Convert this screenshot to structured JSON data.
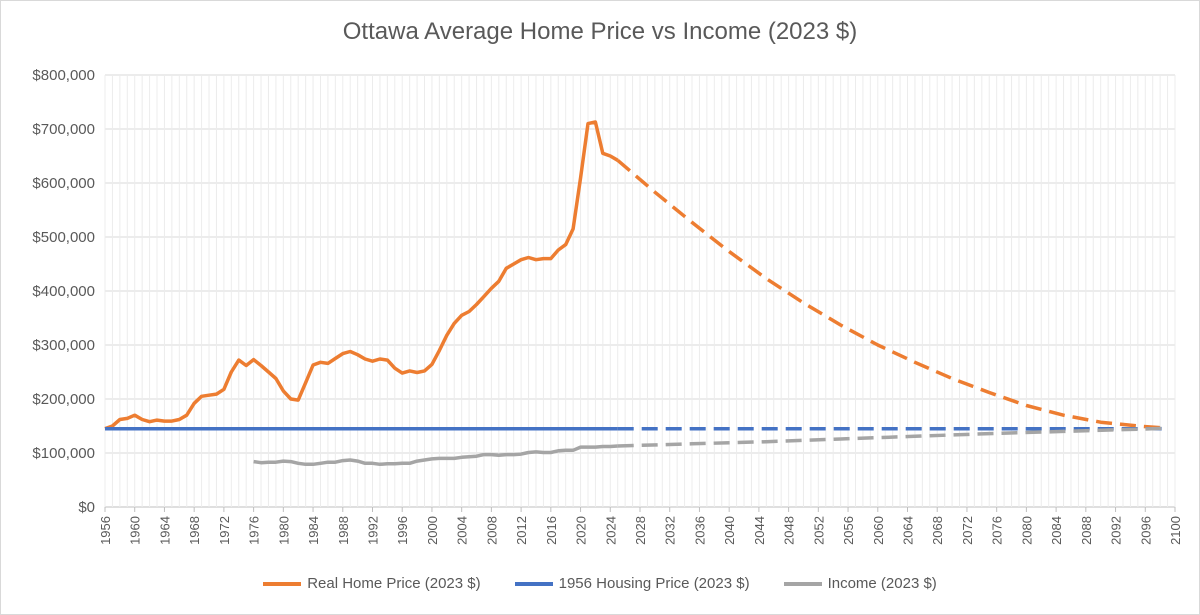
{
  "chart_data": {
    "type": "line",
    "title": "Ottawa Average Home Price vs Income (2023 $)",
    "xlabel": "",
    "ylabel": "",
    "xlim": [
      1956,
      2100
    ],
    "ylim": [
      0,
      800000
    ],
    "y_ticks": [
      0,
      100000,
      200000,
      300000,
      400000,
      500000,
      600000,
      700000,
      800000
    ],
    "y_tick_labels": [
      "$0",
      "$100,000",
      "$200,000",
      "$300,000",
      "$400,000",
      "$500,000",
      "$600,000",
      "$700,000",
      "$800,000"
    ],
    "x_tick_step": 4,
    "grid": true,
    "legend_position": "bottom",
    "colors": {
      "home": "#ed7d31",
      "housing1956": "#4472c4",
      "income": "#a5a5a5"
    },
    "series": [
      {
        "name": "Real Home Price (2023 $)",
        "style": "solid",
        "x": [
          1956,
          1957,
          1958,
          1959,
          1960,
          1961,
          1962,
          1963,
          1964,
          1965,
          1966,
          1967,
          1968,
          1969,
          1970,
          1971,
          1972,
          1973,
          1974,
          1975,
          1976,
          1977,
          1978,
          1979,
          1980,
          1981,
          1982,
          1983,
          1984,
          1985,
          1986,
          1987,
          1988,
          1989,
          1990,
          1991,
          1992,
          1993,
          1994,
          1995,
          1996,
          1997,
          1998,
          1999,
          2000,
          2001,
          2002,
          2003,
          2004,
          2005,
          2006,
          2007,
          2008,
          2009,
          2010,
          2011,
          2012,
          2013,
          2014,
          2015,
          2016,
          2017,
          2018,
          2019,
          2020,
          2021,
          2022,
          2023,
          2024,
          2025
        ],
        "y": [
          145000,
          150000,
          162000,
          164000,
          170000,
          162000,
          158000,
          161000,
          159000,
          159000,
          162000,
          170000,
          192000,
          205000,
          207000,
          209000,
          218000,
          250000,
          272000,
          262000,
          273000,
          262000,
          250000,
          238000,
          215000,
          200000,
          198000,
          230000,
          263000,
          268000,
          266000,
          275000,
          284000,
          288000,
          282000,
          274000,
          270000,
          274000,
          272000,
          257000,
          248000,
          252000,
          249000,
          252000,
          264000,
          290000,
          318000,
          340000,
          355000,
          362000,
          375000,
          390000,
          405000,
          418000,
          442000,
          450000,
          458000,
          462000,
          458000,
          460000,
          460000,
          476000,
          486000,
          515000,
          610000,
          710000,
          713000,
          655000,
          650000,
          642000
        ]
      },
      {
        "name": "Real Home Price (2023 $) projection",
        "style": "dashed",
        "x": [
          2025,
          2030,
          2035,
          2040,
          2045,
          2050,
          2055,
          2060,
          2065,
          2070,
          2075,
          2080,
          2085,
          2090,
          2095,
          2099
        ],
        "y": [
          642000,
          583000,
          527000,
          473000,
          423000,
          378000,
          337000,
          300000,
          268000,
          238000,
          212000,
          188000,
          170000,
          157000,
          150000,
          146000
        ]
      },
      {
        "name": "1956 Housing Price (2023 $)",
        "style": "solid",
        "x": [
          1956,
          2025
        ],
        "y": [
          145000,
          145000
        ]
      },
      {
        "name": "1956 Housing Price (2023 $) projection",
        "style": "dashed",
        "x": [
          2025,
          2099
        ],
        "y": [
          145000,
          145000
        ]
      },
      {
        "name": "Income (2023 $)",
        "style": "solid",
        "x": [
          1976,
          1977,
          1978,
          1979,
          1980,
          1981,
          1982,
          1983,
          1984,
          1985,
          1986,
          1987,
          1988,
          1989,
          1990,
          1991,
          1992,
          1993,
          1994,
          1995,
          1996,
          1997,
          1998,
          1999,
          2000,
          2001,
          2002,
          2003,
          2004,
          2005,
          2006,
          2007,
          2008,
          2009,
          2010,
          2011,
          2012,
          2013,
          2014,
          2015,
          2016,
          2017,
          2018,
          2019,
          2020,
          2021,
          2022,
          2023,
          2024,
          2025
        ],
        "y": [
          84000,
          82000,
          83000,
          83000,
          85000,
          84000,
          81000,
          79000,
          79000,
          81000,
          83000,
          83000,
          86000,
          87000,
          85000,
          81000,
          81000,
          79000,
          80000,
          80000,
          81000,
          81000,
          85000,
          87000,
          89000,
          90000,
          90000,
          90000,
          92000,
          93000,
          94000,
          97000,
          97000,
          96000,
          97000,
          97000,
          98000,
          101000,
          102000,
          101000,
          101000,
          104000,
          105000,
          105000,
          111000,
          111000,
          111000,
          112000,
          112000,
          113000
        ]
      },
      {
        "name": "Income (2023 $) projection",
        "style": "dashed",
        "x": [
          2025,
          2035,
          2045,
          2055,
          2065,
          2075,
          2085,
          2095,
          2099
        ],
        "y": [
          113000,
          117000,
          121000,
          126000,
          131000,
          136000,
          140000,
          144000,
          146000
        ]
      }
    ],
    "legend": [
      {
        "label": "Real Home Price (2023 $)",
        "color": "#ed7d31"
      },
      {
        "label": "1956 Housing Price (2023 $)",
        "color": "#4472c4"
      },
      {
        "label": "Income (2023 $)",
        "color": "#a5a5a5"
      }
    ]
  }
}
